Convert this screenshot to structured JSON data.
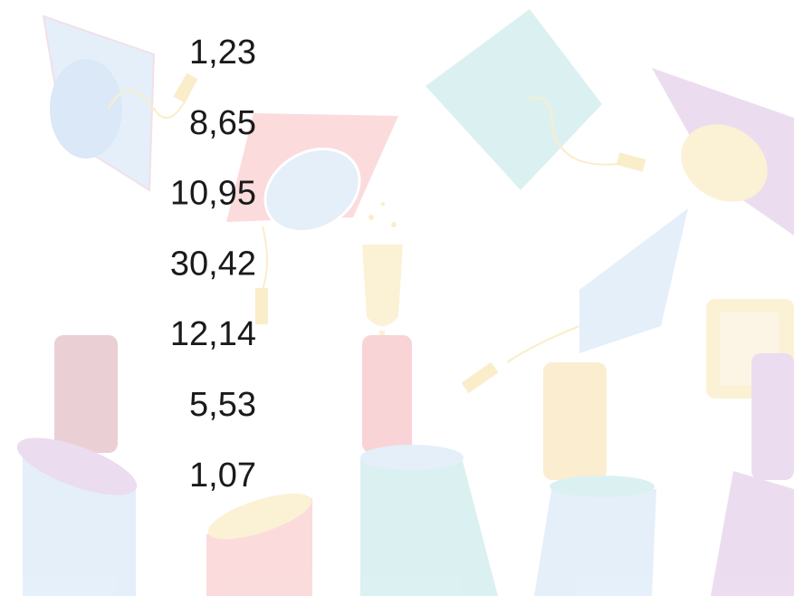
{
  "values": [
    "1,23",
    "8,65",
    "10,95",
    "30,42",
    "12,14",
    "5,53",
    "1,07"
  ]
}
